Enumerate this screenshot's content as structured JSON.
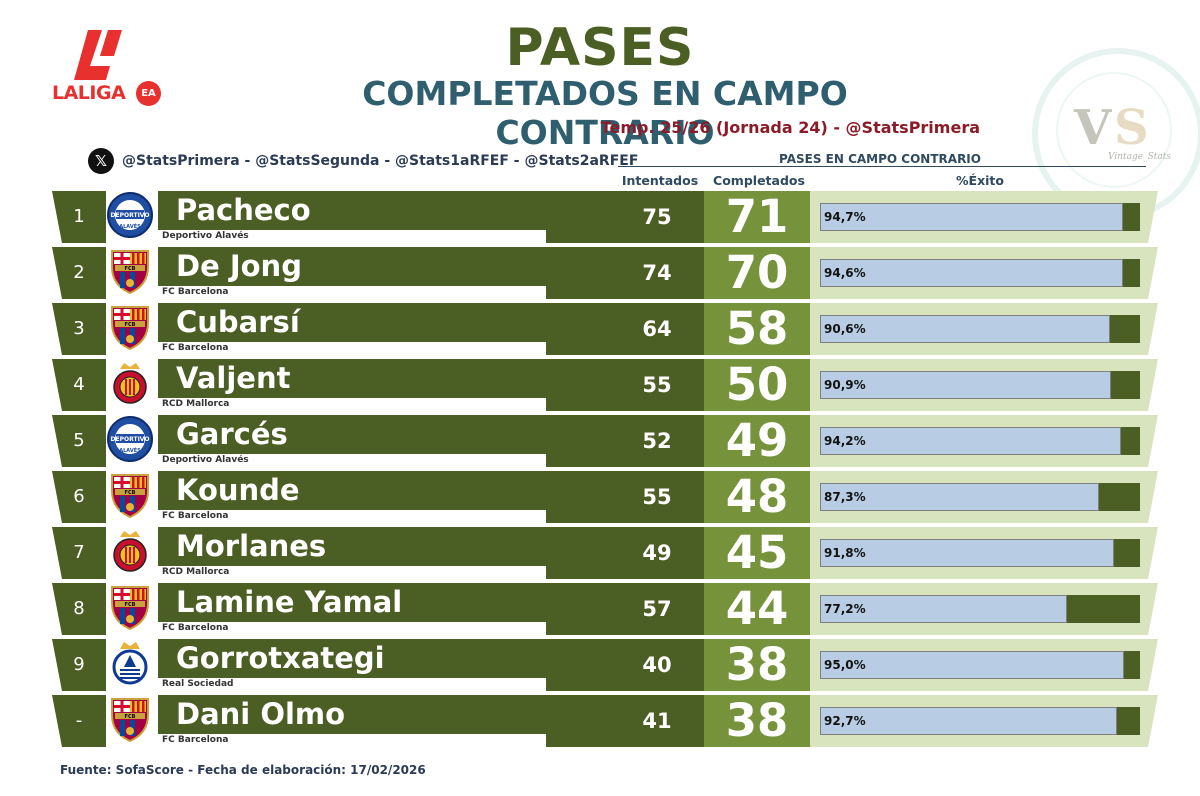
{
  "branding": {
    "logo_text": "LALIGA",
    "logo_badge": "EA",
    "watermark_text": "Vintage_Stats"
  },
  "title": "PASES",
  "subtitle_main": "COMPLETADOS EN CAMPO CONTRARIO",
  "subtitle_season": "Temp. 25/26 (Jornada 24) -  @StatsPrimera",
  "social": "@StatsPrimera - @StatsSegunda - @Stats1aRFEF - @Stats2aRFEF",
  "columns": {
    "group": "PASES EN CAMPO CONTRARIO",
    "attempted": "Intentados",
    "completed": "Completados",
    "pct": "%Éxito"
  },
  "colors": {
    "dark_green": "#4b5e23",
    "mid_green": "#76933c",
    "light_green": "#d7e4bd",
    "bar_blue": "#b8cce4",
    "title_green": "#4b5e23",
    "title_teal": "#2f5e6e",
    "season_red": "#8a1c2a"
  },
  "chart_data": {
    "type": "table",
    "rows": [
      {
        "rank": "1",
        "player": "Pacheco",
        "club": "Deportivo Alavés",
        "club_icon": "alaves-crest-icon",
        "attempted": 75,
        "completed": 71,
        "pct": 94.7,
        "pct_label": "94,7%"
      },
      {
        "rank": "2",
        "player": "De Jong",
        "club": "FC Barcelona",
        "club_icon": "barcelona-crest-icon",
        "attempted": 74,
        "completed": 70,
        "pct": 94.6,
        "pct_label": "94,6%"
      },
      {
        "rank": "3",
        "player": "Cubarsí",
        "club": "FC Barcelona",
        "club_icon": "barcelona-crest-icon",
        "attempted": 64,
        "completed": 58,
        "pct": 90.6,
        "pct_label": "90,6%"
      },
      {
        "rank": "4",
        "player": "Valjent",
        "club": "RCD Mallorca",
        "club_icon": "mallorca-crest-icon",
        "attempted": 55,
        "completed": 50,
        "pct": 90.9,
        "pct_label": "90,9%"
      },
      {
        "rank": "5",
        "player": "Garcés",
        "club": "Deportivo Alavés",
        "club_icon": "alaves-crest-icon",
        "attempted": 52,
        "completed": 49,
        "pct": 94.2,
        "pct_label": "94,2%"
      },
      {
        "rank": "6",
        "player": "Kounde",
        "club": "FC Barcelona",
        "club_icon": "barcelona-crest-icon",
        "attempted": 55,
        "completed": 48,
        "pct": 87.3,
        "pct_label": "87,3%"
      },
      {
        "rank": "7",
        "player": "Morlanes",
        "club": "RCD Mallorca",
        "club_icon": "mallorca-crest-icon",
        "attempted": 49,
        "completed": 45,
        "pct": 91.8,
        "pct_label": "91,8%"
      },
      {
        "rank": "8",
        "player": "Lamine Yamal",
        "club": "FC Barcelona",
        "club_icon": "barcelona-crest-icon",
        "attempted": 57,
        "completed": 44,
        "pct": 77.2,
        "pct_label": "77,2%"
      },
      {
        "rank": "9",
        "player": "Gorrotxategi",
        "club": "Real Sociedad",
        "club_icon": "real-sociedad-crest-icon",
        "attempted": 40,
        "completed": 38,
        "pct": 95.0,
        "pct_label": "95,0%"
      },
      {
        "rank": "-",
        "player": "Dani Olmo",
        "club": "FC Barcelona",
        "club_icon": "barcelona-crest-icon",
        "attempted": 41,
        "completed": 38,
        "pct": 92.7,
        "pct_label": "92,7%"
      }
    ]
  },
  "footer": "Fuente: SofaScore - Fecha de elaboración: 17/02/2026"
}
